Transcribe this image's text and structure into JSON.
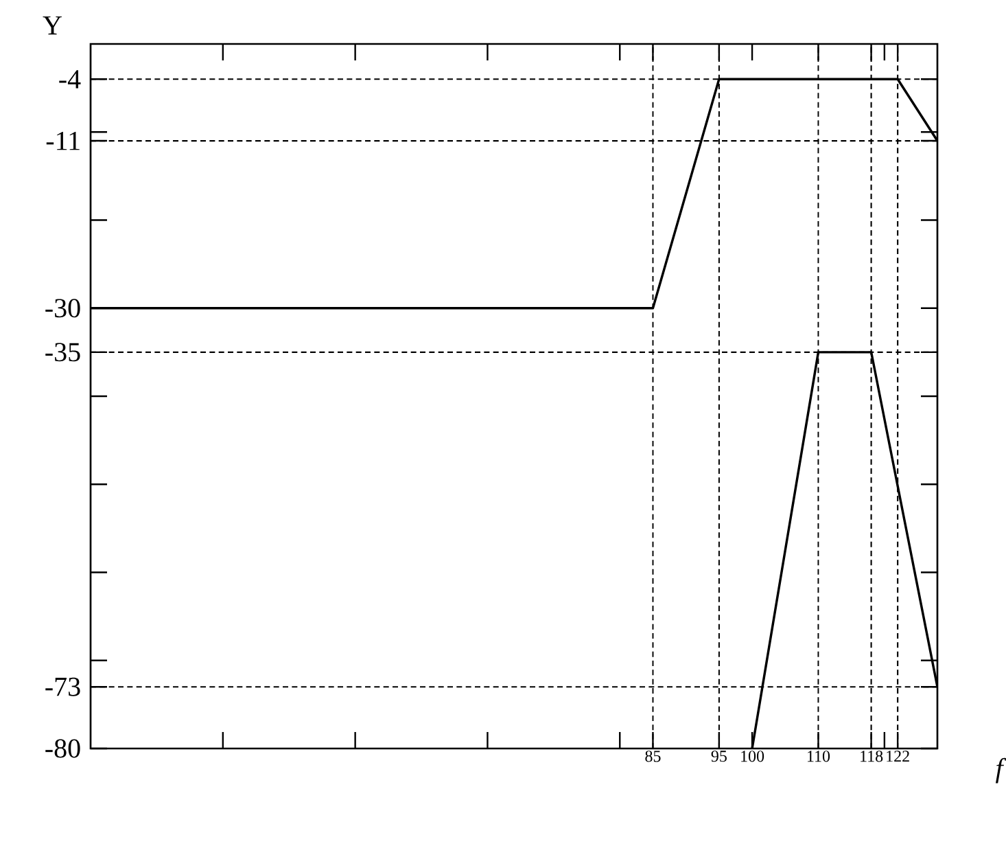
{
  "chart_data": {
    "type": "line",
    "xlabel": "f",
    "ylabel": "Y",
    "xlim": [
      0,
      128
    ],
    "ylim": [
      -80,
      0
    ],
    "xticks": [
      {
        "value": 20,
        "label": null
      },
      {
        "value": 40,
        "label": null
      },
      {
        "value": 60,
        "label": null
      },
      {
        "value": 80,
        "label": null
      },
      85,
      95,
      100,
      110,
      118,
      {
        "value": 120,
        "label": null
      },
      122
    ],
    "yticks": [
      -80,
      -73,
      {
        "value": -70,
        "label": null
      },
      {
        "value": -60,
        "label": null
      },
      {
        "value": -50,
        "label": null
      },
      {
        "value": -40,
        "label": null
      },
      -35,
      -30,
      {
        "value": -20,
        "label": null
      },
      -11,
      {
        "value": -10,
        "label": null
      },
      -4
    ],
    "series": [
      {
        "color": "#000000",
        "x": [
          0,
          85,
          95,
          122,
          128
        ],
        "values": [
          -30,
          -30,
          -4,
          -4,
          -11
        ]
      },
      {
        "color": "#000000",
        "x": [
          100,
          110,
          118,
          128
        ],
        "values": [
          -80,
          -35,
          -35,
          -73
        ]
      }
    ],
    "line_style": "solid",
    "marker": "none",
    "ref_lines": [
      {
        "axis": "y",
        "value": -4,
        "line_style": "dashed"
      },
      {
        "axis": "y",
        "value": -11,
        "line_style": "dashed"
      },
      {
        "axis": "y",
        "value": -35,
        "line_style": "dashed"
      },
      {
        "axis": "y",
        "value": -73,
        "line_style": "dashed"
      },
      {
        "axis": "x",
        "value": 85,
        "line_style": "dashed"
      },
      {
        "axis": "x",
        "value": 95,
        "line_style": "dashed"
      },
      {
        "axis": "x",
        "value": 110,
        "line_style": "dashed"
      },
      {
        "axis": "x",
        "value": 118,
        "line_style": "dashed"
      },
      {
        "axis": "x",
        "value": 122,
        "line_style": "dashed"
      }
    ]
  }
}
